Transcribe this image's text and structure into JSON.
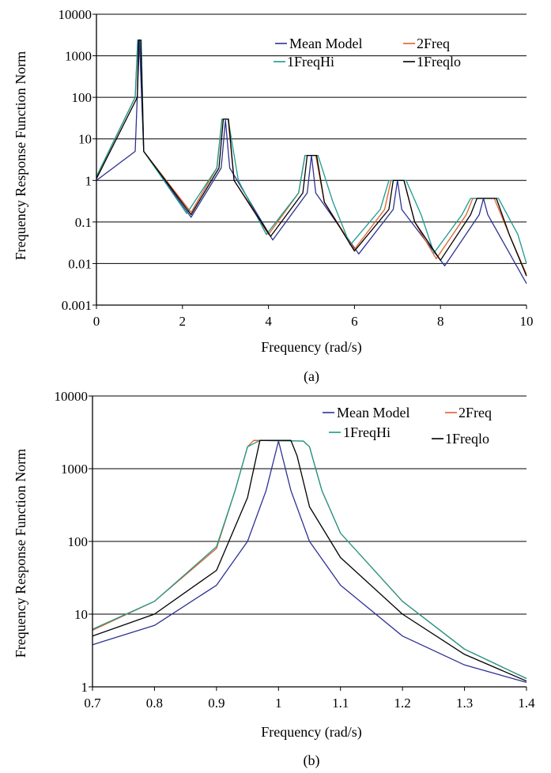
{
  "chart_data": [
    {
      "type": "line",
      "panel_label": "(a)",
      "xlabel": "Frequency (rad/s)",
      "ylabel": "Frequency Response Function Norm",
      "xlim": [
        0,
        10
      ],
      "ylim": [
        0.001,
        10000
      ],
      "y_scale": "log",
      "x_ticks": [
        "0",
        "2",
        "4",
        "6",
        "8",
        "10"
      ],
      "y_ticks": [
        "0.001",
        "0.01",
        "0.1",
        "1",
        "10",
        "100",
        "1000",
        "10000"
      ],
      "grid": "horizontal",
      "legend_position": "top-right",
      "series": [
        {
          "name": "Mean Model",
          "color": "#2E3192",
          "points": [
            [
              0,
              1.0
            ],
            [
              0.9,
              5
            ],
            [
              1.0,
              2400
            ],
            [
              1.1,
              5
            ],
            [
              2.2,
              0.13
            ],
            [
              2.9,
              2
            ],
            [
              3.0,
              28
            ],
            [
              3.1,
              2
            ],
            [
              4.1,
              0.037
            ],
            [
              4.9,
              0.5
            ],
            [
              5.0,
              4
            ],
            [
              5.1,
              0.5
            ],
            [
              6.1,
              0.017
            ],
            [
              6.9,
              0.2
            ],
            [
              7.0,
              1.0
            ],
            [
              7.1,
              0.2
            ],
            [
              8.1,
              0.0088
            ],
            [
              8.9,
              0.15
            ],
            [
              9.0,
              0.37
            ],
            [
              9.1,
              0.15
            ],
            [
              10,
              0.0033
            ]
          ]
        },
        {
          "name": "2Freq",
          "color": "#E0602B",
          "points": [
            [
              0,
              1.2
            ],
            [
              0.9,
              100
            ],
            [
              0.96,
              2400
            ],
            [
              1.04,
              2400
            ],
            [
              1.1,
              5
            ],
            [
              2.2,
              0.17
            ],
            [
              2.8,
              2
            ],
            [
              2.92,
              30
            ],
            [
              3.06,
              30
            ],
            [
              3.2,
              1
            ],
            [
              4.0,
              0.05
            ],
            [
              4.7,
              0.5
            ],
            [
              4.85,
              4
            ],
            [
              5.1,
              4
            ],
            [
              5.3,
              0.3
            ],
            [
              6.0,
              0.022
            ],
            [
              6.7,
              0.2
            ],
            [
              6.85,
              1.0
            ],
            [
              7.15,
              1.0
            ],
            [
              7.4,
              0.1
            ],
            [
              7.9,
              0.013
            ],
            [
              8.6,
              0.15
            ],
            [
              8.75,
              0.37
            ],
            [
              9.25,
              0.37
            ],
            [
              9.6,
              0.05
            ],
            [
              10,
              0.0055
            ]
          ]
        },
        {
          "name": "1FreqHi",
          "color": "#1B9A8C",
          "points": [
            [
              0,
              1.25
            ],
            [
              0.9,
              100
            ],
            [
              0.96,
              2400
            ],
            [
              1.04,
              2400
            ],
            [
              1.1,
              5
            ],
            [
              2.1,
              0.16
            ],
            [
              2.8,
              2
            ],
            [
              2.92,
              30
            ],
            [
              3.06,
              30
            ],
            [
              3.3,
              1
            ],
            [
              3.95,
              0.05
            ],
            [
              4.7,
              0.5
            ],
            [
              4.85,
              4
            ],
            [
              5.15,
              4
            ],
            [
              5.5,
              0.3
            ],
            [
              5.9,
              0.028
            ],
            [
              6.6,
              0.2
            ],
            [
              6.8,
              1.0
            ],
            [
              7.2,
              1.0
            ],
            [
              7.55,
              0.15
            ],
            [
              7.85,
              0.018
            ],
            [
              8.5,
              0.15
            ],
            [
              8.7,
              0.37
            ],
            [
              9.35,
              0.37
            ],
            [
              9.8,
              0.05
            ],
            [
              10,
              0.01
            ]
          ]
        },
        {
          "name": "1Freqlo",
          "color": "#000000",
          "points": [
            [
              0,
              1.1
            ],
            [
              0.95,
              100
            ],
            [
              0.98,
              2400
            ],
            [
              1.03,
              2400
            ],
            [
              1.1,
              5
            ],
            [
              2.2,
              0.15
            ],
            [
              2.85,
              2
            ],
            [
              2.95,
              30
            ],
            [
              3.07,
              30
            ],
            [
              3.2,
              1
            ],
            [
              4.05,
              0.045
            ],
            [
              4.8,
              0.5
            ],
            [
              4.9,
              4
            ],
            [
              5.12,
              4
            ],
            [
              5.3,
              0.3
            ],
            [
              6.0,
              0.02
            ],
            [
              6.8,
              0.2
            ],
            [
              6.9,
              1.0
            ],
            [
              7.15,
              1.0
            ],
            [
              7.4,
              0.1
            ],
            [
              8.0,
              0.012
            ],
            [
              8.7,
              0.15
            ],
            [
              8.85,
              0.37
            ],
            [
              9.3,
              0.37
            ],
            [
              9.6,
              0.05
            ],
            [
              10,
              0.005
            ]
          ]
        }
      ]
    },
    {
      "type": "line",
      "panel_label": "(b)",
      "xlabel": "Frequency (rad/s)",
      "ylabel": "Frequency Response Function Norm",
      "xlim": [
        0.7,
        1.4
      ],
      "ylim": [
        1,
        10000
      ],
      "y_scale": "log",
      "x_ticks": [
        "0.7",
        "0.8",
        "0.9",
        "1",
        "1.1",
        "1.2",
        "1.3",
        "1.4"
      ],
      "y_ticks": [
        "1",
        "10",
        "100",
        "1000",
        "10000"
      ],
      "grid": "horizontal",
      "legend_position": "top-right",
      "series": [
        {
          "name": "Mean Model",
          "color": "#2E3192",
          "points": [
            [
              0.7,
              3.8
            ],
            [
              0.8,
              7
            ],
            [
              0.9,
              25
            ],
            [
              0.95,
              100
            ],
            [
              0.98,
              500
            ],
            [
              1.0,
              2400
            ],
            [
              1.02,
              500
            ],
            [
              1.05,
              100
            ],
            [
              1.1,
              25
            ],
            [
              1.2,
              5
            ],
            [
              1.3,
              2
            ],
            [
              1.4,
              1.15
            ]
          ]
        },
        {
          "name": "2Freq",
          "color": "#E0602B",
          "points": [
            [
              0.7,
              6
            ],
            [
              0.8,
              15
            ],
            [
              0.9,
              80
            ],
            [
              0.93,
              500
            ],
            [
              0.95,
              2000
            ],
            [
              0.96,
              2450
            ],
            [
              1.04,
              2400
            ],
            [
              1.05,
              2000
            ],
            [
              1.07,
              500
            ],
            [
              1.1,
              130
            ],
            [
              1.2,
              15
            ],
            [
              1.3,
              3.3
            ],
            [
              1.4,
              1.3
            ]
          ]
        },
        {
          "name": "1FreqHi",
          "color": "#1B9A8C",
          "points": [
            [
              0.7,
              6.2
            ],
            [
              0.8,
              15
            ],
            [
              0.9,
              85
            ],
            [
              0.93,
              500
            ],
            [
              0.95,
              2000
            ],
            [
              0.97,
              2450
            ],
            [
              1.04,
              2400
            ],
            [
              1.05,
              2000
            ],
            [
              1.07,
              500
            ],
            [
              1.1,
              130
            ],
            [
              1.2,
              15
            ],
            [
              1.3,
              3.3
            ],
            [
              1.4,
              1.3
            ]
          ]
        },
        {
          "name": "1Freqlo",
          "color": "#000000",
          "points": [
            [
              0.7,
              5
            ],
            [
              0.8,
              10
            ],
            [
              0.9,
              40
            ],
            [
              0.95,
              400
            ],
            [
              0.97,
              2450
            ],
            [
              1.02,
              2450
            ],
            [
              1.03,
              1500
            ],
            [
              1.05,
              300
            ],
            [
              1.1,
              60
            ],
            [
              1.2,
              10
            ],
            [
              1.3,
              2.8
            ],
            [
              1.4,
              1.2
            ]
          ]
        }
      ]
    }
  ]
}
